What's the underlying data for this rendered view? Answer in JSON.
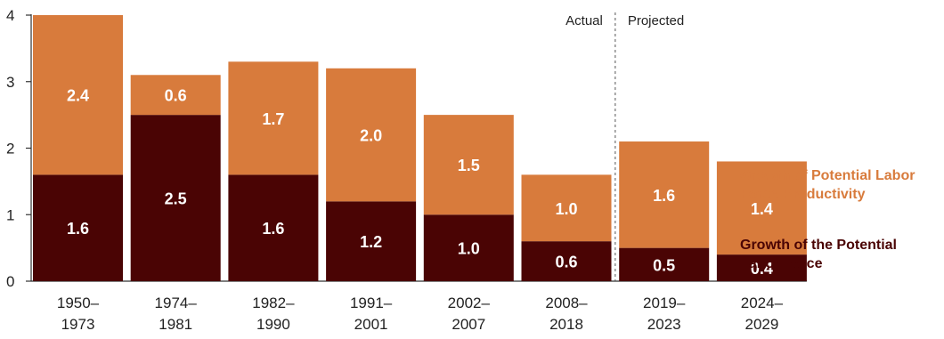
{
  "chart_data": {
    "type": "bar",
    "stacked": true,
    "categories": [
      [
        "1950–",
        "1973"
      ],
      [
        "1974–",
        "1981"
      ],
      [
        "1982–",
        "1990"
      ],
      [
        "1991–",
        "2001"
      ],
      [
        "2002–",
        "2007"
      ],
      [
        "2008–",
        "2018"
      ],
      [
        "2019–",
        "2023"
      ],
      [
        "2024–",
        "2029"
      ]
    ],
    "series": [
      {
        "name": "Growth of the Potential Labor Force",
        "legend_lines": [
          "Growth of the Potential",
          "Labor Force"
        ],
        "color": "#4a0404",
        "values": [
          1.6,
          2.5,
          1.6,
          1.2,
          1.0,
          0.6,
          0.5,
          0.4
        ],
        "labels": [
          "1.6",
          "2.5",
          "1.6",
          "1.2",
          "1.0",
          "0.6",
          "0.5",
          "0.4"
        ]
      },
      {
        "name": "Growth of Potential Labor Force Productivity",
        "legend_lines": [
          "Growth of Potential Labor",
          "Force Productivity"
        ],
        "color": "#d87b3c",
        "values": [
          2.4,
          0.6,
          1.7,
          2.0,
          1.5,
          1.0,
          1.6,
          1.4
        ],
        "labels": [
          "2.4",
          "0.6",
          "1.7",
          "2.0",
          "1.5",
          "1.0",
          "1.6",
          "1.4"
        ]
      }
    ],
    "ylim": [
      0,
      4
    ],
    "yticks": [
      "0",
      "1",
      "2",
      "3",
      "4"
    ],
    "annotations": {
      "actual": "Actual",
      "projected": "Projected"
    },
    "legend_position": "right",
    "grid": false
  }
}
